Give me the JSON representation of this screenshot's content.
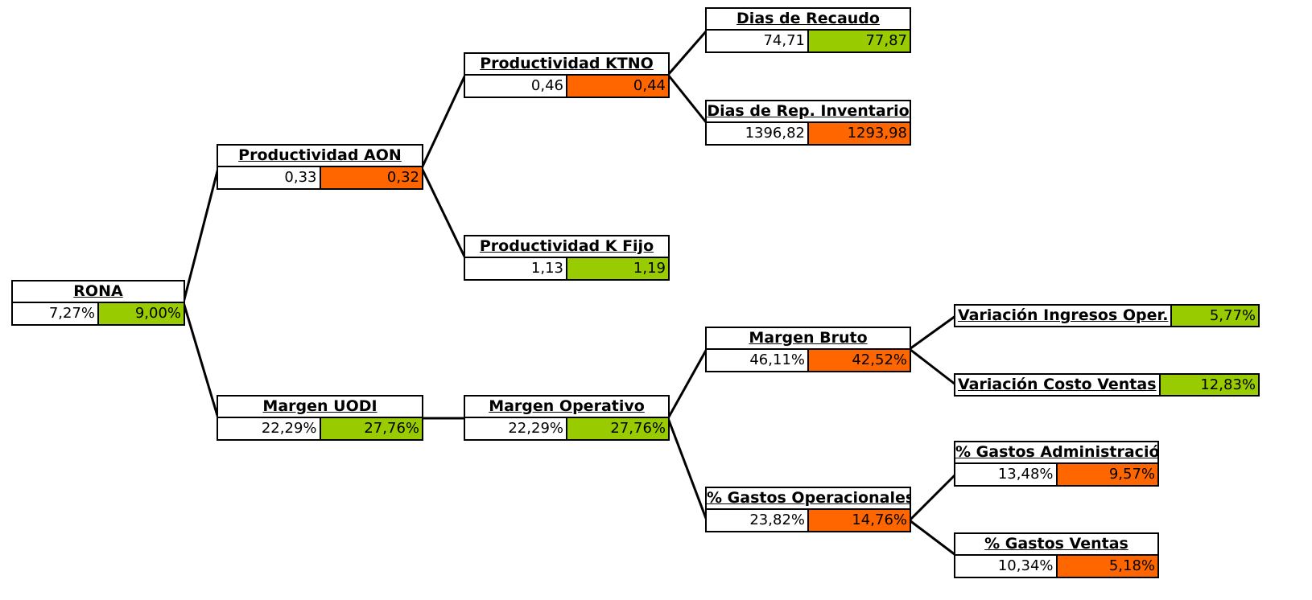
{
  "colors": {
    "favorable": "#99cc00",
    "unfavorable": "#ff6600",
    "line": "#000000"
  },
  "nodes": {
    "rona": {
      "title": "RONA",
      "prev": "7,27%",
      "curr": "9,00%",
      "status": "good"
    },
    "aon": {
      "title": "Productividad AON",
      "prev": "0,33",
      "curr": "0,32",
      "status": "bad"
    },
    "uodi": {
      "title": "Margen UODI",
      "prev": "22,29%",
      "curr": "27,76%",
      "status": "good"
    },
    "ktno": {
      "title": "Productividad KTNO",
      "prev": "0,46",
      "curr": "0,44",
      "status": "bad"
    },
    "kfijo": {
      "title": "Productividad K Fijo",
      "prev": "1,13",
      "curr": "1,19",
      "status": "good"
    },
    "operativo": {
      "title": "Margen Operativo",
      "prev": "22,29%",
      "curr": "27,76%",
      "status": "good"
    },
    "recaudo": {
      "title": "Dias de Recaudo",
      "prev": "74,71",
      "curr": "77,87",
      "status": "good"
    },
    "inventario": {
      "title": "Dias de Rep. Inventario",
      "prev": "1396,82",
      "curr": "1293,98",
      "status": "bad"
    },
    "bruto": {
      "title": "Margen Bruto",
      "prev": "46,11%",
      "curr": "42,52%",
      "status": "bad"
    },
    "gastos_op": {
      "title": "% Gastos Operacionales",
      "prev": "23,82%",
      "curr": "14,76%",
      "status": "bad"
    },
    "gastos_adm": {
      "title": "% Gastos Administración",
      "prev": "13,48%",
      "curr": "9,57%",
      "status": "bad"
    },
    "gastos_ventas": {
      "title": "% Gastos Ventas",
      "prev": "10,34%",
      "curr": "5,18%",
      "status": "bad"
    }
  },
  "singles": {
    "ingresos": {
      "title": "Variación Ingresos Oper.",
      "value": "5,77%",
      "status": "good"
    },
    "costo": {
      "title": "Variación Costo Ventas",
      "value": "12,83%",
      "status": "good"
    }
  }
}
